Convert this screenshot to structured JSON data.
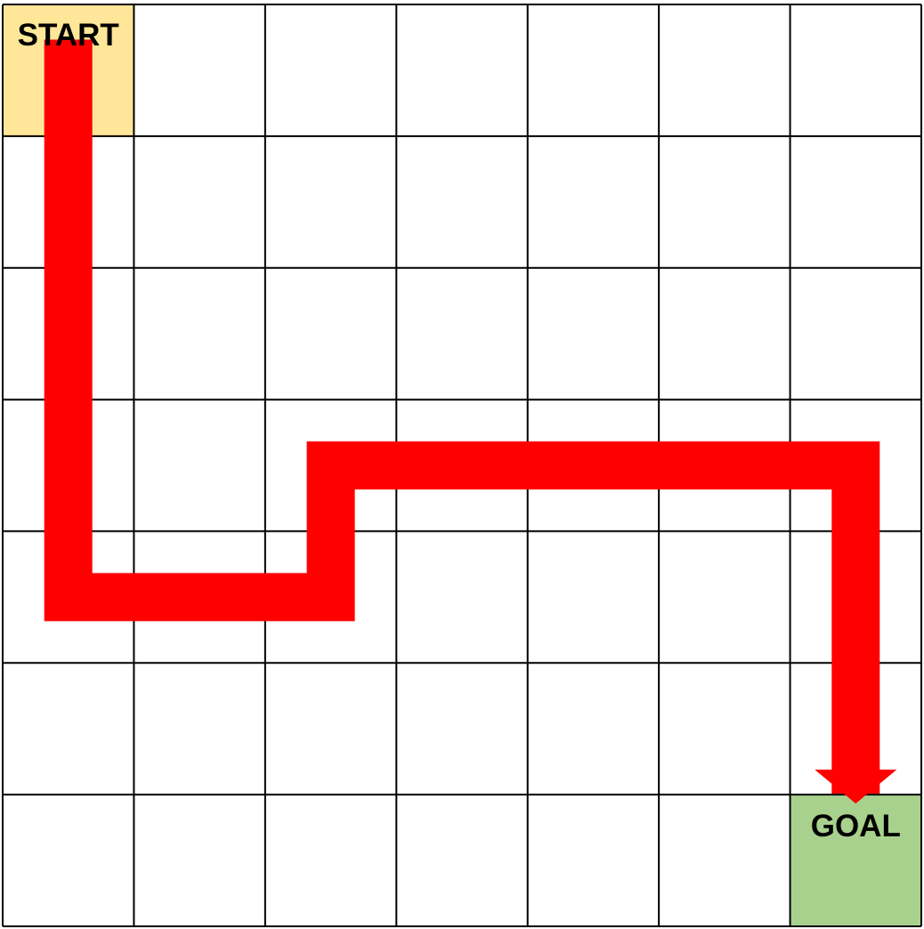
{
  "grid": {
    "rows": 7,
    "cols": 7,
    "line_color": "#000000",
    "background": "#ffffff"
  },
  "start": {
    "label": "START",
    "row": 0,
    "col": 0,
    "color": "#ffe699"
  },
  "goal": {
    "label": "GOAL",
    "row": 6,
    "col": 6,
    "color": "#a9d18e"
  },
  "path": {
    "color": "#ff0000",
    "cells": [
      [
        0,
        0
      ],
      [
        1,
        0
      ],
      [
        2,
        0
      ],
      [
        3,
        0
      ],
      [
        4,
        0
      ],
      [
        4,
        1
      ],
      [
        4,
        2
      ],
      [
        3,
        2
      ],
      [
        3,
        3
      ],
      [
        3,
        4
      ],
      [
        3,
        5
      ],
      [
        3,
        6
      ],
      [
        4,
        6
      ],
      [
        5,
        6
      ],
      [
        6,
        6
      ]
    ],
    "ends_with_arrow": true
  }
}
